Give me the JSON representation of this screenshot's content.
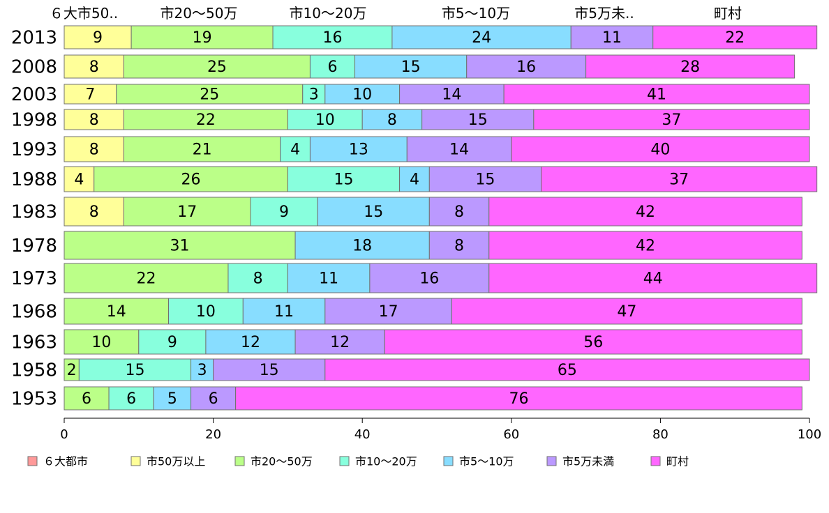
{
  "chart_data": {
    "type": "bar",
    "orientation": "horizontal",
    "stacked": true,
    "xlim": [
      0,
      100
    ],
    "xticks": [
      0,
      20,
      40,
      60,
      80,
      100
    ],
    "column_headers": [
      "６大市50..",
      "市20〜50万",
      "市10〜20万",
      "市5〜10万",
      "市5万未..",
      "町村"
    ],
    "legend_position": "bottom",
    "series": [
      {
        "name": "６大都市",
        "color": "#ff9999"
      },
      {
        "name": "市50万以上",
        "color": "#ffff99"
      },
      {
        "name": "市20〜50万",
        "color": "#bbff88"
      },
      {
        "name": "市10〜20万",
        "color": "#88ffdd"
      },
      {
        "name": "市5〜10万",
        "color": "#88ddff"
      },
      {
        "name": "市5万未満",
        "color": "#bb99ff"
      },
      {
        "name": "町村",
        "color": "#ff66ff"
      }
    ],
    "categories": [
      "2013",
      "2008",
      "2003",
      "1998",
      "1993",
      "1988",
      "1983",
      "1978",
      "1973",
      "1968",
      "1963",
      "1958",
      "1953"
    ],
    "rows": [
      {
        "year": "2013",
        "values": [
          0,
          9,
          19,
          16,
          24,
          11,
          22
        ],
        "labels": [
          "",
          "9",
          "19",
          "16",
          "24",
          "11",
          "22"
        ]
      },
      {
        "year": "2008",
        "values": [
          0,
          8,
          25,
          6,
          15,
          16,
          28
        ],
        "labels": [
          "",
          "8",
          "25",
          "6",
          "15",
          "16",
          "28"
        ]
      },
      {
        "year": "2003",
        "values": [
          0,
          7,
          25,
          3,
          10,
          14,
          41
        ],
        "labels": [
          "",
          "7",
          "25",
          "3",
          "10",
          "14",
          "41"
        ]
      },
      {
        "year": "1998",
        "values": [
          0,
          8,
          22,
          10,
          8,
          15,
          37
        ],
        "labels": [
          "",
          "8",
          "22",
          "10",
          "8",
          "15",
          "37"
        ]
      },
      {
        "year": "1993",
        "values": [
          0,
          8,
          21,
          4,
          13,
          14,
          40
        ],
        "labels": [
          "",
          "8",
          "21",
          "4",
          "13",
          "14",
          "40"
        ]
      },
      {
        "year": "1988",
        "values": [
          0,
          4,
          26,
          15,
          4,
          15,
          37
        ],
        "labels": [
          "",
          "4",
          "26",
          "15",
          "4",
          "15",
          "37"
        ]
      },
      {
        "year": "1983",
        "values": [
          0,
          8,
          17,
          9,
          15,
          8,
          42
        ],
        "labels": [
          "",
          "8",
          "17",
          "9",
          "15",
          "8",
          "42"
        ]
      },
      {
        "year": "1978",
        "values": [
          0,
          0,
          31,
          0,
          18,
          8,
          42
        ],
        "labels": [
          "",
          "",
          "31",
          "",
          "18",
          "8",
          "42"
        ]
      },
      {
        "year": "1973",
        "values": [
          0,
          0,
          22,
          8,
          11,
          16,
          44
        ],
        "labels": [
          "",
          "",
          "22",
          "8",
          "11",
          "16",
          "44"
        ]
      },
      {
        "year": "1968",
        "values": [
          0,
          0,
          14,
          10,
          11,
          17,
          47
        ],
        "labels": [
          "",
          "",
          "14",
          "10",
          "11",
          "17",
          "47"
        ]
      },
      {
        "year": "1963",
        "values": [
          0,
          0,
          10,
          9,
          12,
          12,
          56
        ],
        "labels": [
          "",
          "",
          "10",
          "9",
          "12",
          "12",
          "56"
        ]
      },
      {
        "year": "1958",
        "values": [
          0,
          0,
          2,
          15,
          3,
          15,
          65
        ],
        "labels": [
          "",
          "",
          "2",
          "15",
          "3",
          "15",
          "65"
        ]
      },
      {
        "year": "1953",
        "values": [
          0,
          0,
          6,
          6,
          5,
          6,
          76
        ],
        "labels": [
          "",
          "",
          "6",
          "6",
          "5",
          "6",
          "76"
        ]
      }
    ]
  }
}
